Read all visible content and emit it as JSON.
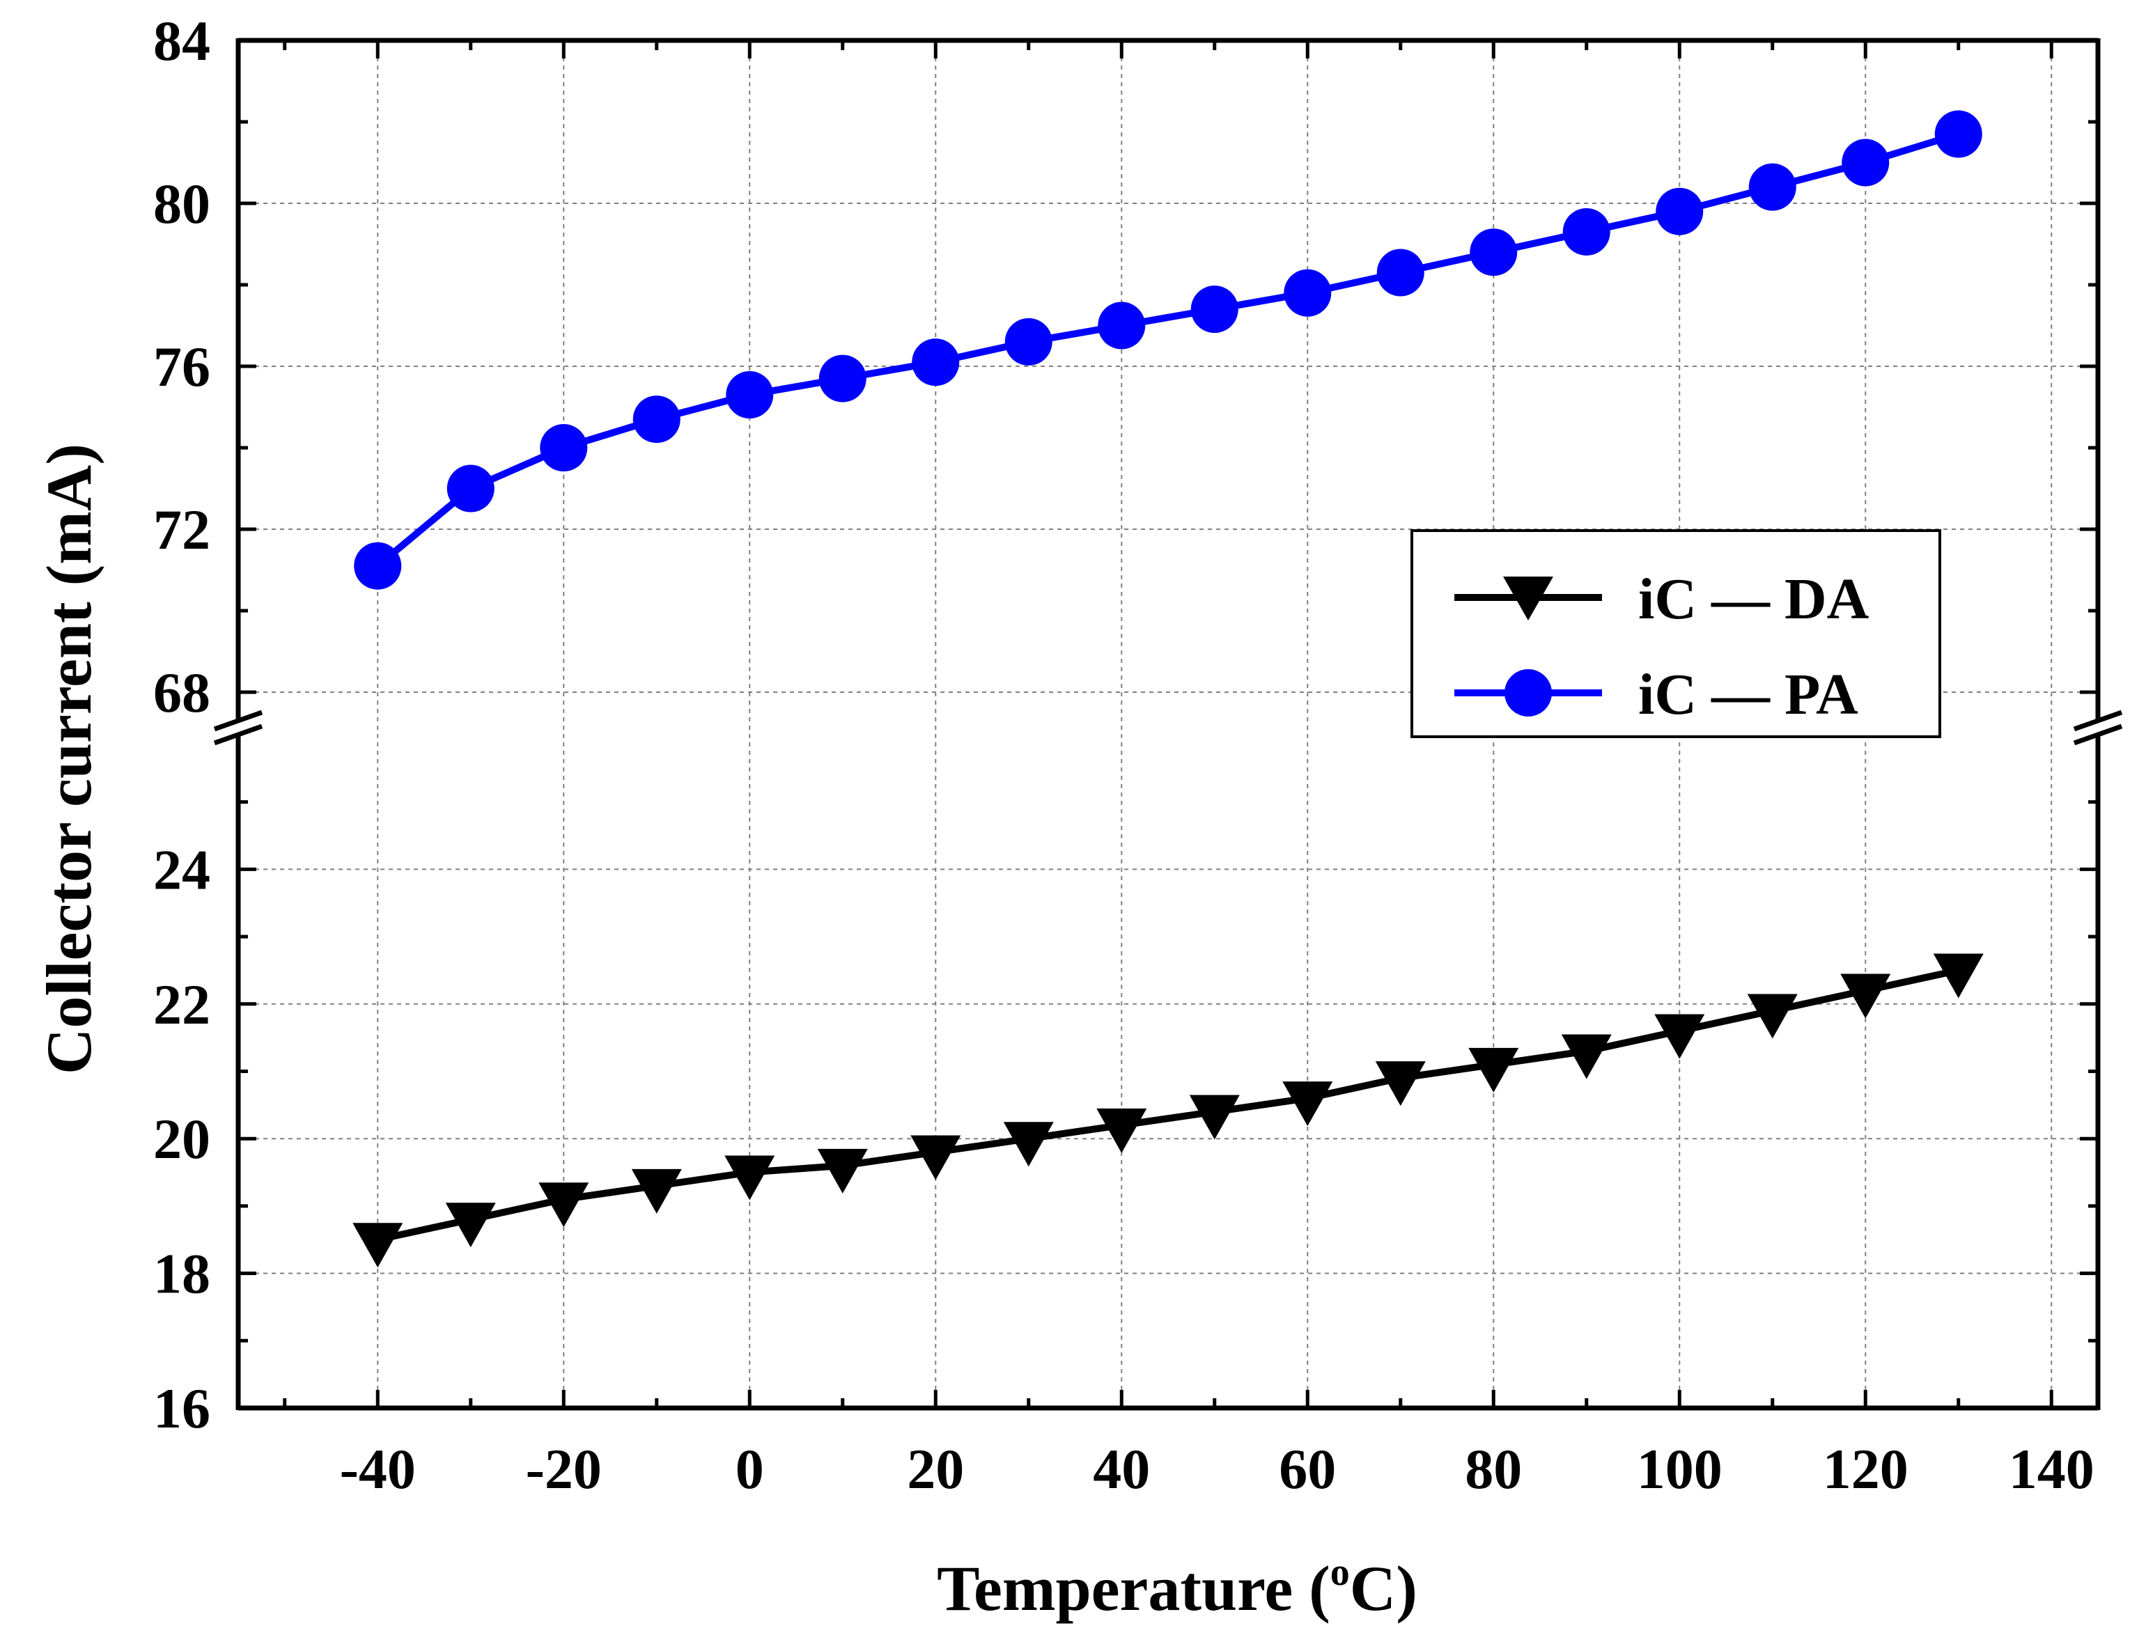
{
  "chart_data": {
    "type": "line",
    "xlabel": "Temperature (",
    "xlabel_sup": "o",
    "xlabel_end": "C)",
    "ylabel": "Collector current (mA)",
    "xlim": [
      -55,
      145
    ],
    "x_ticks": [
      -40,
      -20,
      0,
      20,
      40,
      60,
      80,
      100,
      120,
      140
    ],
    "x_tick_labels": [
      "-40",
      "-20",
      "0",
      "20",
      "40",
      "60",
      "80",
      "100",
      "120",
      "140"
    ],
    "y_axis_break": true,
    "y_lower_range": [
      16,
      26
    ],
    "y_upper_range": [
      67.3,
      84
    ],
    "y_lower_ticks": [
      16,
      18,
      20,
      22,
      24
    ],
    "y_lower_tick_labels": [
      "16",
      "18",
      "20",
      "22",
      "24"
    ],
    "y_upper_ticks": [
      68,
      72,
      76,
      80,
      84
    ],
    "y_upper_tick_labels": [
      "68",
      "72",
      "76",
      "80",
      "84"
    ],
    "grid": true,
    "legend_position": "right-center",
    "x": [
      -40,
      -30,
      -20,
      -10,
      0,
      10,
      20,
      30,
      40,
      50,
      60,
      70,
      80,
      90,
      100,
      110,
      120,
      130
    ],
    "series": [
      {
        "name": "iC—DA",
        "label_main": "iC",
        "label_tail": "DA",
        "color": "#000000",
        "marker": "triangle-down",
        "values": [
          18.5,
          18.8,
          19.1,
          19.3,
          19.5,
          19.6,
          19.8,
          20.0,
          20.2,
          20.4,
          20.6,
          20.9,
          21.1,
          21.3,
          21.6,
          21.9,
          22.2,
          22.5
        ]
      },
      {
        "name": "iC—PA",
        "label_main": "iC",
        "label_tail": "PA",
        "color": "#0000ff",
        "marker": "circle",
        "values": [
          71.1,
          73.0,
          74.0,
          74.7,
          75.3,
          75.7,
          76.1,
          76.6,
          77.0,
          77.4,
          77.8,
          78.3,
          78.8,
          79.3,
          79.8,
          80.4,
          81.0,
          81.7
        ]
      }
    ]
  }
}
